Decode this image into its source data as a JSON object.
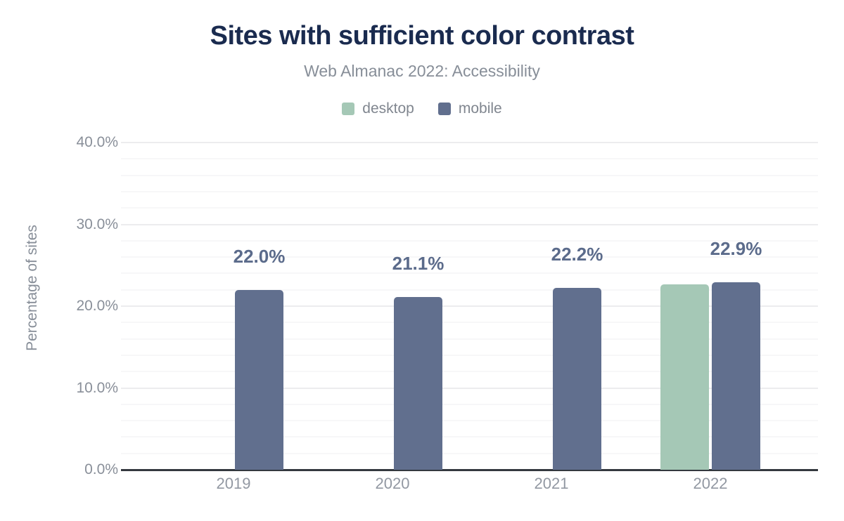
{
  "chart_data": {
    "type": "bar",
    "title": "Sites with sufficient color contrast",
    "subtitle": "Web Almanac 2022: Accessibility",
    "ylabel": "Percentage of sites",
    "xlabel": "",
    "categories": [
      "2019",
      "2020",
      "2021",
      "2022"
    ],
    "series": [
      {
        "name": "desktop",
        "color": "#a5c8b6",
        "values": [
          null,
          null,
          null,
          22.7
        ]
      },
      {
        "name": "mobile",
        "color": "#616f8e",
        "values": [
          22.0,
          21.1,
          22.2,
          22.9
        ]
      }
    ],
    "data_labels": {
      "series": "mobile",
      "values": [
        "22.0%",
        "21.1%",
        "22.2%",
        "22.9%"
      ]
    },
    "y_ticks": [
      {
        "value": 0,
        "label": "0.0%"
      },
      {
        "value": 10,
        "label": "10.0%"
      },
      {
        "value": 20,
        "label": "20.0%"
      },
      {
        "value": 30,
        "label": "30.0%"
      },
      {
        "value": 40,
        "label": "40.0%"
      }
    ],
    "ylim": [
      0,
      40
    ],
    "minor_grid_step": 2,
    "major_grid_step": 10,
    "grid": "horizontal",
    "legend_position": "top"
  },
  "colors": {
    "title": "#1a2b4f",
    "subtitle": "#878e98",
    "data_label": "#5b6b8b",
    "axis_line": "#33383e",
    "desktop_series": "#a5c8b6",
    "mobile_series": "#616f8e"
  }
}
